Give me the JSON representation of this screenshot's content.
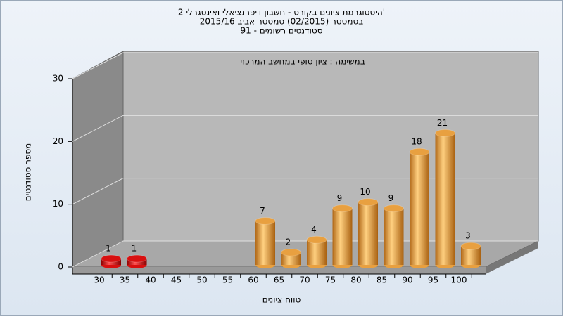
{
  "chart_data": {
    "type": "bar",
    "title": [
      "היסטוגרמת ציונים בקורס - חשבון דיפרנציאלי ואינטגרלי 2'",
      "בסמסטר  (02/2015)  סמסטר אביב 2015/16",
      "סטודנטים רשומים - 91"
    ],
    "subtitle": "במשימה : ציון סופי במחשב המרכזי",
    "x_label": "טווח ציונים",
    "y_label": "מספר סטודנטים",
    "categories": [
      30,
      35,
      40,
      45,
      50,
      55,
      60,
      65,
      70,
      75,
      80,
      85,
      90,
      95,
      100
    ],
    "values": [
      1,
      1,
      0,
      0,
      0,
      0,
      7,
      2,
      4,
      9,
      10,
      9,
      18,
      21,
      3
    ],
    "value_labels": [
      "1",
      "1",
      null,
      null,
      null,
      null,
      "7",
      "2",
      "4",
      "9",
      "10",
      "9",
      "18",
      "21",
      "3"
    ],
    "colors": [
      "#d81010",
      "#d81010",
      "#e8a040",
      "#e8a040",
      "#e8a040",
      "#e8a040",
      "#e8a040",
      "#e8a040",
      "#e8a040",
      "#e8a040",
      "#e8a040",
      "#e8a040",
      "#e8a040",
      "#e8a040",
      "#e8a040"
    ],
    "ylim": [
      0,
      30
    ],
    "yticks": [
      0,
      10,
      20,
      30
    ],
    "grid": true
  }
}
